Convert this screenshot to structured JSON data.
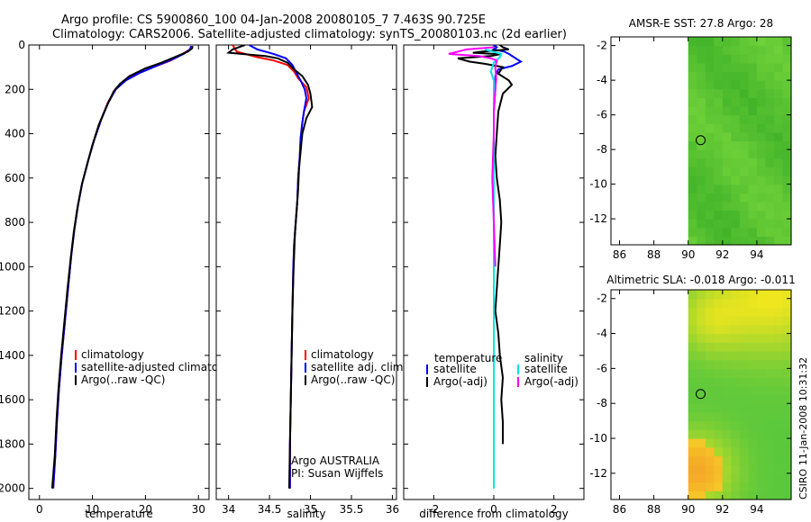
{
  "title_line1": "Argo profile: CS 5900860_100 04-Jan-2008 20080105_7 7.463S 90.725E",
  "title_line2": "Climatology: CARS2006. Satellite-adjusted climatology: synTS_20080103.nc (2d earlier)",
  "side_label": "CSIRO 11-Jan-2008 10:31:32",
  "colors": {
    "climatology": "#ff0000",
    "satellite": "#0000ff",
    "argo": "#000000",
    "salinity_satellite": "#00e5e5",
    "salinity_argo": "#ff00ff"
  },
  "chart_data": [
    {
      "type": "line",
      "name": "temperature-panel",
      "xlabel": "temperature",
      "ylabel": "",
      "xlim": [
        -2,
        32
      ],
      "ylim": [
        2050,
        0
      ],
      "xticks": [
        "0",
        "10",
        "20",
        "30"
      ],
      "xtick_values": [
        0,
        10,
        20,
        30
      ],
      "yticks": [
        "0",
        "200",
        "400",
        "600",
        "800",
        "1000",
        "1200",
        "1400",
        "1600",
        "1800",
        "2000"
      ],
      "ytick_values": [
        0,
        200,
        400,
        600,
        800,
        1000,
        1200,
        1400,
        1600,
        1800,
        2000
      ],
      "legend": [
        "climatology",
        "satellite-adjusted climatology",
        "Argo(..raw -QC)"
      ],
      "series": [
        {
          "name": "climatology",
          "color": "#ff0000",
          "points": [
            [
              28.6,
              5
            ],
            [
              28.4,
              20
            ],
            [
              27.0,
              40
            ],
            [
              24.8,
              70
            ],
            [
              21.5,
              100
            ],
            [
              18.5,
              130
            ],
            [
              16.0,
              160
            ],
            [
              14.3,
              200
            ],
            [
              12.9,
              260
            ],
            [
              11.6,
              340
            ],
            [
              10.3,
              430
            ],
            [
              9.2,
              520
            ],
            [
              8.1,
              620
            ],
            [
              7.3,
              720
            ],
            [
              6.6,
              830
            ],
            [
              6.0,
              950
            ],
            [
              5.4,
              1100
            ],
            [
              4.8,
              1250
            ],
            [
              4.2,
              1400
            ],
            [
              3.7,
              1550
            ],
            [
              3.3,
              1700
            ],
            [
              3.0,
              1850
            ],
            [
              2.6,
              2000
            ]
          ]
        },
        {
          "name": "satellite-adjusted climatology",
          "color": "#0000ff",
          "points": [
            [
              28.7,
              5
            ],
            [
              28.4,
              20
            ],
            [
              27.2,
              40
            ],
            [
              25.5,
              60
            ],
            [
              22.5,
              90
            ],
            [
              19.0,
              125
            ],
            [
              16.3,
              160
            ],
            [
              14.4,
              200
            ],
            [
              13.0,
              260
            ],
            [
              11.6,
              340
            ],
            [
              10.3,
              430
            ],
            [
              9.2,
              520
            ],
            [
              8.1,
              620
            ],
            [
              7.3,
              720
            ],
            [
              6.6,
              830
            ],
            [
              6.0,
              950
            ],
            [
              5.4,
              1100
            ],
            [
              4.8,
              1250
            ],
            [
              4.2,
              1400
            ],
            [
              3.7,
              1550
            ],
            [
              3.3,
              1700
            ],
            [
              3.0,
              1850
            ],
            [
              2.6,
              2000
            ]
          ]
        },
        {
          "name": "Argo(..raw -QC)",
          "color": "#000000",
          "points": [
            [
              28.9,
              5
            ],
            [
              28.8,
              15
            ],
            [
              28.0,
              30
            ],
            [
              26.0,
              50
            ],
            [
              23.0,
              80
            ],
            [
              20.0,
              105
            ],
            [
              17.0,
              140
            ],
            [
              15.2,
              175
            ],
            [
              14.0,
              210
            ],
            [
              12.6,
              280
            ],
            [
              11.2,
              360
            ],
            [
              10.0,
              450
            ],
            [
              9.0,
              540
            ],
            [
              8.0,
              630
            ],
            [
              7.2,
              730
            ],
            [
              6.5,
              840
            ],
            [
              5.9,
              960
            ],
            [
              5.3,
              1100
            ],
            [
              4.7,
              1250
            ],
            [
              4.1,
              1400
            ],
            [
              3.6,
              1550
            ],
            [
              3.2,
              1700
            ],
            [
              2.9,
              1850
            ],
            [
              2.4,
              2000
            ]
          ]
        }
      ]
    },
    {
      "type": "line",
      "name": "salinity-panel",
      "xlabel": "salinity",
      "xlim": [
        33.85,
        36.05
      ],
      "ylim": [
        2050,
        0
      ],
      "xticks": [
        "34",
        "34.5",
        "35",
        "35.5",
        "36"
      ],
      "xtick_values": [
        34,
        34.5,
        35,
        35.5,
        36
      ],
      "legend": [
        "climatology",
        "satellite adj. clim.",
        "Argo(..raw -QC)"
      ],
      "annotation": [
        "Argo AUSTRALIA",
        "PI: Susan Wijffels"
      ],
      "series": [
        {
          "name": "climatology",
          "color": "#ff0000",
          "points": [
            [
              34.05,
              0
            ],
            [
              34.1,
              30
            ],
            [
              34.35,
              55
            ],
            [
              34.55,
              70
            ],
            [
              34.72,
              90
            ],
            [
              34.8,
              120
            ],
            [
              34.85,
              150
            ],
            [
              34.95,
              190
            ],
            [
              34.98,
              240
            ],
            [
              34.92,
              300
            ],
            [
              34.9,
              350
            ],
            [
              34.88,
              420
            ],
            [
              34.87,
              500
            ],
            [
              34.85,
              600
            ],
            [
              34.84,
              700
            ],
            [
              34.82,
              800
            ],
            [
              34.8,
              900
            ],
            [
              34.79,
              1000
            ],
            [
              34.78,
              1200
            ],
            [
              34.77,
              1400
            ],
            [
              34.76,
              1600
            ],
            [
              34.75,
              1800
            ],
            [
              34.75,
              2000
            ]
          ]
        },
        {
          "name": "satellite adj. clim.",
          "color": "#0000ff",
          "points": [
            [
              34.25,
              0
            ],
            [
              34.35,
              20
            ],
            [
              34.55,
              40
            ],
            [
              34.7,
              60
            ],
            [
              34.78,
              90
            ],
            [
              34.82,
              120
            ],
            [
              34.88,
              160
            ],
            [
              34.93,
              200
            ],
            [
              34.95,
              240
            ],
            [
              34.92,
              300
            ],
            [
              34.9,
              350
            ],
            [
              34.88,
              420
            ],
            [
              34.87,
              500
            ],
            [
              34.85,
              600
            ],
            [
              34.84,
              700
            ],
            [
              34.82,
              800
            ],
            [
              34.8,
              900
            ],
            [
              34.79,
              1000
            ],
            [
              34.78,
              1200
            ],
            [
              34.77,
              1400
            ],
            [
              34.76,
              1600
            ],
            [
              34.75,
              1800
            ],
            [
              34.75,
              2000
            ]
          ]
        },
        {
          "name": "Argo(..raw -QC)",
          "color": "#000000",
          "points": [
            [
              34.2,
              0
            ],
            [
              34.05,
              20
            ],
            [
              34.0,
              35
            ],
            [
              34.45,
              50
            ],
            [
              34.6,
              60
            ],
            [
              34.72,
              80
            ],
            [
              34.8,
              110
            ],
            [
              34.9,
              140
            ],
            [
              34.97,
              180
            ],
            [
              35.0,
              220
            ],
            [
              35.02,
              280
            ],
            [
              34.95,
              330
            ],
            [
              34.9,
              400
            ],
            [
              34.88,
              480
            ],
            [
              34.86,
              560
            ],
            [
              34.85,
              650
            ],
            [
              34.83,
              750
            ],
            [
              34.81,
              850
            ],
            [
              34.8,
              950
            ],
            [
              34.79,
              1050
            ],
            [
              34.78,
              1200
            ],
            [
              34.77,
              1400
            ],
            [
              34.76,
              1600
            ],
            [
              34.75,
              1800
            ],
            [
              34.74,
              2000
            ]
          ]
        }
      ]
    },
    {
      "type": "line",
      "name": "difference-panel",
      "xlabel": "difference from climatology",
      "xlim": [
        -3.0,
        3.0
      ],
      "ylim": [
        2050,
        0
      ],
      "xticks": [
        "-2",
        "0",
        "2"
      ],
      "xtick_values": [
        -2,
        0,
        2
      ],
      "legend_left_title": "temperature",
      "legend_right_title": "salinity",
      "legend_left": [
        "satellite",
        "Argo(-adj)"
      ],
      "legend_right": [
        "satellite",
        "Argo(-adj)"
      ],
      "series": [
        {
          "name": "temperature satellite",
          "color": "#0000ff",
          "points": [
            [
              0.0,
              0
            ],
            [
              0.1,
              10
            ],
            [
              0.0,
              20
            ],
            [
              0.35,
              30
            ],
            [
              0.5,
              40
            ],
            [
              0.9,
              75
            ],
            [
              0.6,
              95
            ],
            [
              0.15,
              110
            ],
            [
              0.05,
              140
            ],
            [
              0.05,
              200
            ],
            [
              0.0,
              300
            ],
            [
              0.0,
              500
            ],
            [
              0.0,
              800
            ],
            [
              0.0,
              1000
            ]
          ]
        },
        {
          "name": "temperature Argo(-adj)",
          "color": "#000000",
          "points": [
            [
              0.2,
              0
            ],
            [
              0.3,
              10
            ],
            [
              0.5,
              20
            ],
            [
              -0.4,
              30
            ],
            [
              -0.7,
              35
            ],
            [
              0.2,
              42
            ],
            [
              -0.1,
              50
            ],
            [
              -1.2,
              60
            ],
            [
              -0.8,
              75
            ],
            [
              -0.3,
              85
            ],
            [
              0.3,
              100
            ],
            [
              0.15,
              130
            ],
            [
              0.5,
              160
            ],
            [
              0.6,
              180
            ],
            [
              0.3,
              220
            ],
            [
              0.15,
              300
            ],
            [
              0.1,
              400
            ],
            [
              0.05,
              500
            ],
            [
              0.1,
              600
            ],
            [
              0.2,
              700
            ],
            [
              0.25,
              800
            ],
            [
              0.2,
              900
            ],
            [
              0.15,
              1000
            ],
            [
              0.1,
              1100
            ],
            [
              0.05,
              1200
            ],
            [
              0.15,
              1300
            ],
            [
              0.2,
              1400
            ],
            [
              0.3,
              1500
            ],
            [
              0.25,
              1600
            ],
            [
              0.3,
              1700
            ],
            [
              0.3,
              1800
            ]
          ]
        },
        {
          "name": "salinity satellite",
          "color": "#00e5e5",
          "points": [
            [
              -0.3,
              20
            ],
            [
              0.25,
              40
            ],
            [
              0.2,
              55
            ],
            [
              0.0,
              80
            ],
            [
              -0.1,
              120
            ],
            [
              0.0,
              160
            ],
            [
              0.0,
              200
            ],
            [
              0.0,
              300
            ],
            [
              0.0,
              500
            ],
            [
              0.0,
              800
            ],
            [
              0.0,
              1000
            ],
            [
              0.0,
              1300
            ],
            [
              0.0,
              1600
            ],
            [
              0.0,
              1900
            ],
            [
              0.0,
              2000
            ]
          ]
        },
        {
          "name": "salinity Argo(-adj)",
          "color": "#ff00ff",
          "points": [
            [
              0.0,
              10
            ],
            [
              -0.9,
              20
            ],
            [
              -1.5,
              40
            ],
            [
              -0.5,
              50
            ],
            [
              -0.1,
              60
            ],
            [
              0.1,
              70
            ],
            [
              0.05,
              100
            ],
            [
              0.08,
              150
            ],
            [
              0.05,
              200
            ],
            [
              0.0,
              300
            ],
            [
              0.0,
              400
            ],
            [
              -0.05,
              600
            ],
            [
              0.0,
              800
            ],
            [
              0.05,
              1000
            ]
          ]
        }
      ]
    },
    {
      "type": "heatmap",
      "name": "sst-map",
      "title": "AMSR-E SST: 27.8 Argo: 28",
      "xlim": [
        85.5,
        96.0
      ],
      "ylim": [
        -13.5,
        -1.5
      ],
      "xticks": [
        "86",
        "88",
        "90",
        "92",
        "94"
      ],
      "xtick_values": [
        86,
        88,
        90,
        92,
        94
      ],
      "yticks": [
        "-2",
        "-4",
        "-6",
        "-8",
        "-10",
        "-12"
      ],
      "ytick_values": [
        -2,
        -4,
        -6,
        -8,
        -10,
        -12
      ],
      "data_lon_min": 90,
      "marker": {
        "lon": 90.725,
        "lat": -7.463
      }
    },
    {
      "type": "heatmap",
      "name": "sla-map",
      "title": "Altimetric SLA: -0.018 Argo: -0.011",
      "xlim": [
        85.5,
        96.0
      ],
      "ylim": [
        -13.5,
        -1.5
      ],
      "xticks": [
        "86",
        "88",
        "90",
        "92",
        "94"
      ],
      "xtick_values": [
        86,
        88,
        90,
        92,
        94
      ],
      "yticks": [
        "-2",
        "-4",
        "-6",
        "-8",
        "-10",
        "-12"
      ],
      "ytick_values": [
        -2,
        -4,
        -6,
        -8,
        -10,
        -12
      ],
      "data_lon_min": 90,
      "marker": {
        "lon": 90.725,
        "lat": -7.463
      }
    }
  ]
}
